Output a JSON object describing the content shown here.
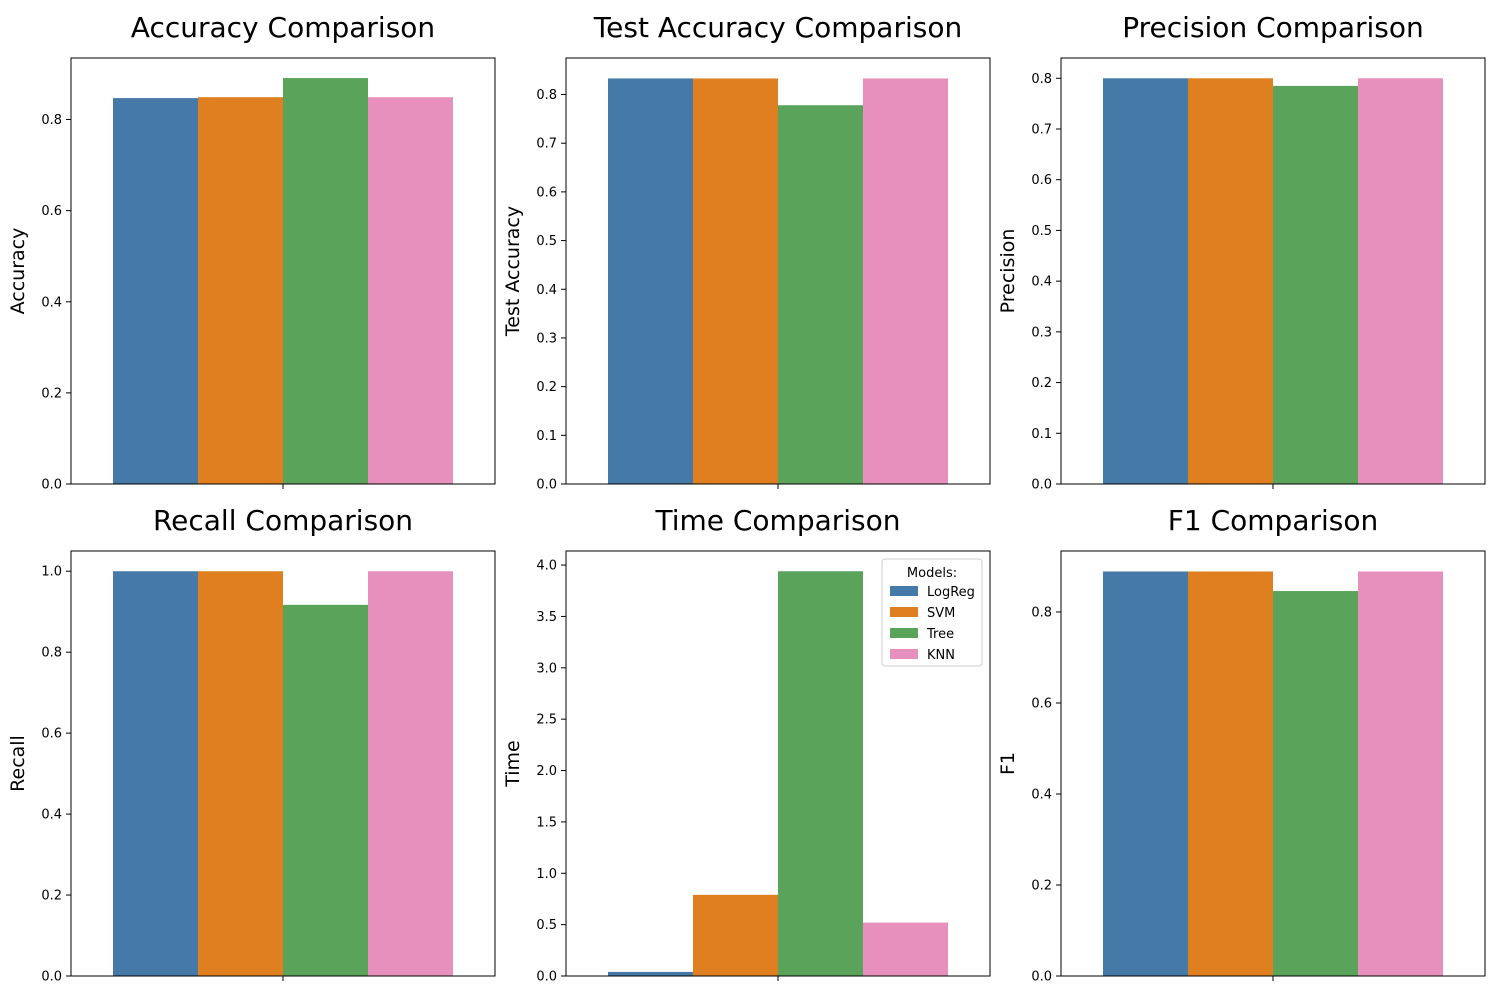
{
  "legend": {
    "title": "Models:",
    "entries": [
      "LogReg",
      "SVM",
      "Tree",
      "KNN"
    ],
    "placement": "top-right of Time Comparison panel"
  },
  "colors": {
    "LogReg": "#4479a8",
    "SVM": "#df7f20",
    "Tree": "#5aa35a",
    "KNN": "#e890bd",
    "axis": "#000000",
    "background": "#ffffff"
  },
  "chart_data": [
    {
      "type": "bar",
      "title": "Accuracy Comparison",
      "xlabel": "",
      "ylabel": "Accuracy",
      "categories": [
        "LogReg",
        "SVM",
        "Tree",
        "KNN"
      ],
      "values": [
        0.847,
        0.849,
        0.891,
        0.849
      ],
      "ylim": [
        0,
        0.935
      ],
      "yticks": [
        0.0,
        0.2,
        0.4,
        0.6,
        0.8
      ],
      "ytick_labels": [
        "0.0",
        "0.2",
        "0.4",
        "0.6",
        "0.8"
      ],
      "grid": false
    },
    {
      "type": "bar",
      "title": "Test Accuracy Comparison",
      "xlabel": "",
      "ylabel": "Test Accuracy",
      "categories": [
        "LogReg",
        "SVM",
        "Tree",
        "KNN"
      ],
      "values": [
        0.833,
        0.833,
        0.778,
        0.833
      ],
      "ylim": [
        0,
        0.875
      ],
      "yticks": [
        0.0,
        0.1,
        0.2,
        0.3,
        0.4,
        0.5,
        0.6,
        0.7,
        0.8
      ],
      "ytick_labels": [
        "0.0",
        "0.1",
        "0.2",
        "0.3",
        "0.4",
        "0.5",
        "0.6",
        "0.7",
        "0.8"
      ],
      "grid": false
    },
    {
      "type": "bar",
      "title": "Precision Comparison",
      "xlabel": "",
      "ylabel": "Precision",
      "categories": [
        "LogReg",
        "SVM",
        "Tree",
        "KNN"
      ],
      "values": [
        0.8,
        0.8,
        0.785,
        0.8
      ],
      "ylim": [
        0,
        0.84
      ],
      "yticks": [
        0.0,
        0.1,
        0.2,
        0.3,
        0.4,
        0.5,
        0.6,
        0.7,
        0.8
      ],
      "ytick_labels": [
        "0.0",
        "0.1",
        "0.2",
        "0.3",
        "0.4",
        "0.5",
        "0.6",
        "0.7",
        "0.8"
      ],
      "grid": false
    },
    {
      "type": "bar",
      "title": "Recall Comparison",
      "xlabel": "",
      "ylabel": "Recall",
      "categories": [
        "LogReg",
        "SVM",
        "Tree",
        "KNN"
      ],
      "values": [
        1.0,
        1.0,
        0.917,
        1.0
      ],
      "ylim": [
        0,
        1.05
      ],
      "yticks": [
        0.0,
        0.2,
        0.4,
        0.6,
        0.8,
        1.0
      ],
      "ytick_labels": [
        "0.0",
        "0.2",
        "0.4",
        "0.6",
        "0.8",
        "1.0"
      ],
      "grid": false
    },
    {
      "type": "bar",
      "title": "Time Comparison",
      "xlabel": "",
      "ylabel": "Time",
      "categories": [
        "LogReg",
        "SVM",
        "Tree",
        "KNN"
      ],
      "values": [
        0.04,
        0.79,
        3.94,
        0.52
      ],
      "ylim": [
        0,
        4.137
      ],
      "yticks": [
        0.0,
        0.5,
        1.0,
        1.5,
        2.0,
        2.5,
        3.0,
        3.5,
        4.0
      ],
      "ytick_labels": [
        "0.0",
        "0.5",
        "1.0",
        "1.5",
        "2.0",
        "2.5",
        "3.0",
        "3.5",
        "4.0"
      ],
      "grid": false,
      "legend": true
    },
    {
      "type": "bar",
      "title": "F1 Comparison",
      "xlabel": "",
      "ylabel": "F1",
      "categories": [
        "LogReg",
        "SVM",
        "Tree",
        "KNN"
      ],
      "values": [
        0.889,
        0.889,
        0.846,
        0.889
      ],
      "ylim": [
        0,
        0.934
      ],
      "yticks": [
        0.0,
        0.2,
        0.4,
        0.6,
        0.8
      ],
      "ytick_labels": [
        "0.0",
        "0.2",
        "0.4",
        "0.6",
        "0.8"
      ],
      "grid": false
    }
  ]
}
